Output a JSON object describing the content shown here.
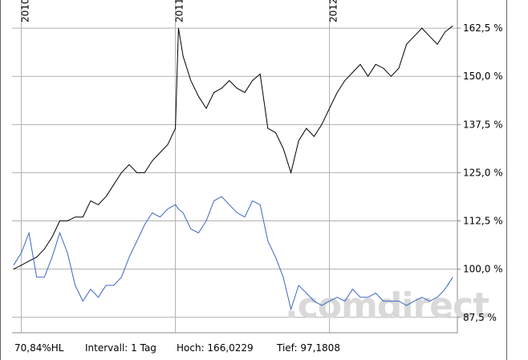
{
  "chart_data": {
    "type": "line",
    "x": [
      2009.95,
      2010.0,
      2010.05,
      2010.1,
      2010.15,
      2010.2,
      2010.25,
      2010.3,
      2010.35,
      2010.4,
      2010.45,
      2010.5,
      2010.55,
      2010.6,
      2010.65,
      2010.7,
      2010.75,
      2010.8,
      2010.85,
      2010.9,
      2010.95,
      2011.0,
      2011.02,
      2011.05,
      2011.1,
      2011.15,
      2011.2,
      2011.25,
      2011.3,
      2011.35,
      2011.4,
      2011.45,
      2011.5,
      2011.55,
      2011.6,
      2011.65,
      2011.7,
      2011.75,
      2011.8,
      2011.85,
      2011.9,
      2011.95,
      2012.0,
      2012.05,
      2012.1,
      2012.15,
      2012.2,
      2012.25,
      2012.3,
      2012.35,
      2012.4,
      2012.45,
      2012.5,
      2012.55,
      2012.6,
      2012.65,
      2012.7,
      2012.75,
      2012.8
    ],
    "series": [
      {
        "color": "#000000",
        "values": [
          100.0,
          101.0,
          102.1,
          103.1,
          105.2,
          108.3,
          112.5,
          112.5,
          113.5,
          113.5,
          117.7,
          116.7,
          118.8,
          121.9,
          125.0,
          127.1,
          125.0,
          125.0,
          128.1,
          130.2,
          132.3,
          136.5,
          162.5,
          155.2,
          148.9,
          144.8,
          141.7,
          145.8,
          146.9,
          148.9,
          146.9,
          145.8,
          148.9,
          150.6,
          136.5,
          135.4,
          131.3,
          125.0,
          133.3,
          136.5,
          134.4,
          137.5,
          141.7,
          145.8,
          148.9,
          151.0,
          153.1,
          150.0,
          153.1,
          152.1,
          150.0,
          152.1,
          158.3,
          160.4,
          162.5,
          160.4,
          158.3,
          161.5,
          163.1
        ]
      },
      {
        "color": "#3a66c4",
        "values": [
          101.0,
          104.2,
          109.4,
          97.9,
          97.9,
          103.1,
          109.4,
          104.2,
          95.8,
          91.7,
          94.8,
          92.7,
          95.8,
          95.8,
          97.9,
          103.1,
          107.3,
          111.5,
          114.6,
          113.5,
          115.6,
          116.7,
          115.6,
          114.6,
          110.4,
          109.4,
          112.5,
          117.7,
          118.8,
          116.7,
          114.6,
          113.5,
          117.7,
          116.7,
          107.3,
          103.1,
          97.9,
          89.6,
          95.8,
          93.8,
          91.7,
          90.6,
          91.7,
          92.7,
          91.7,
          94.8,
          92.7,
          92.7,
          93.8,
          91.7,
          91.7,
          91.7,
          90.6,
          91.7,
          92.7,
          91.7,
          92.7,
          94.8,
          97.9
        ]
      }
    ],
    "xlim": [
      2009.94,
      2012.83
    ],
    "xticks": [
      2010,
      2011,
      2012
    ],
    "ylim": [
      83.5,
      169.8
    ],
    "yticks": [
      {
        "value": 87.5,
        "label": "87,5 %"
      },
      {
        "value": 100,
        "label": "100,0 %"
      },
      {
        "value": 112.5,
        "label": "112,5 %"
      },
      {
        "value": 125,
        "label": "125,0 %"
      },
      {
        "value": 137.5,
        "label": "137,5 %"
      },
      {
        "value": 150,
        "label": "150,0 %"
      },
      {
        "value": 162.5,
        "label": "162,5 %"
      }
    ],
    "grid": true,
    "watermark": ".comdirect",
    "footer": [
      "70,84%HL",
      "Intervall: 1 Tag",
      "Hoch: 166,0229",
      "Tief: 97,1808"
    ]
  }
}
